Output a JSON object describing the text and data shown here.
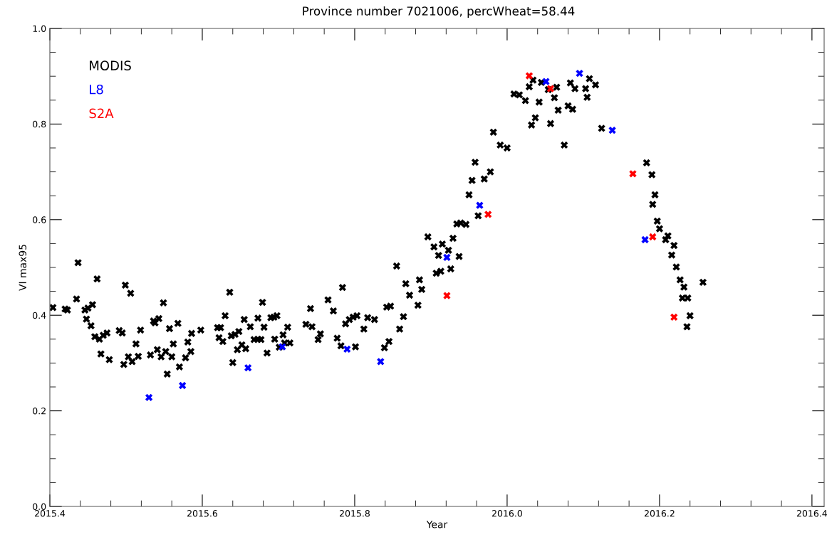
{
  "chart_data": {
    "type": "scatter",
    "title": "Province number 7021006, percWheat=58.44",
    "xlabel": "Year",
    "ylabel": "VI max95",
    "xlim": [
      2015.4,
      2016.416
    ],
    "xticks": [
      2015.4,
      2015.6,
      2015.8,
      {
        "value": 2016.0,
        "label": "2016.0"
      },
      2016.2,
      2016.4
    ],
    "ylim": [
      0.0,
      1.0
    ],
    "yticks": [
      {
        "value": 0.0,
        "label": "0.0"
      },
      0.2,
      0.4,
      0.6,
      0.8,
      {
        "value": 1.0,
        "label": "1.0"
      }
    ],
    "grid": false,
    "legend": "top left",
    "marker": "cross",
    "series": [
      {
        "name": "MODIS",
        "color": "#000000",
        "x": [
          2015.404,
          2015.42,
          2015.423,
          2015.437,
          2015.435,
          2015.446,
          2015.45,
          2015.456,
          2015.448,
          2015.462,
          2015.454,
          2015.459,
          2015.465,
          2015.47,
          2015.475,
          2015.467,
          2015.478,
          2015.491,
          2015.495,
          2015.499,
          2015.506,
          2015.497,
          2015.503,
          2015.508,
          2015.513,
          2015.516,
          2015.519,
          2015.532,
          2015.536,
          2015.538,
          2015.541,
          2015.543,
          2015.546,
          2015.549,
          2015.552,
          2015.554,
          2015.557,
          2015.56,
          2015.562,
          2015.568,
          2015.57,
          2015.578,
          2015.581,
          2015.585,
          2015.586,
          2015.598,
          2015.62,
          2015.624,
          2015.622,
          2015.627,
          2015.63,
          2015.636,
          2015.64,
          2015.638,
          2015.643,
          2015.648,
          2015.646,
          2015.652,
          2015.657,
          2015.655,
          2015.663,
          2015.668,
          2015.673,
          2015.677,
          2015.673,
          2015.679,
          2015.681,
          2015.685,
          2015.69,
          2015.694,
          2015.698,
          2015.695,
          2015.701,
          2015.706,
          2015.708,
          2015.715,
          2015.712,
          2015.736,
          2015.742,
          2015.744,
          2015.755,
          2015.752,
          2015.765,
          2015.772,
          2015.777,
          2015.784,
          2015.782,
          2015.788,
          2015.793,
          2015.798,
          2015.803,
          2015.801,
          2015.812,
          2015.817,
          2015.826,
          2015.839,
          2015.845,
          2015.842,
          2015.847,
          2015.855,
          2015.859,
          2015.864,
          2015.867,
          2015.872,
          2015.883,
          2015.885,
          2015.888,
          2015.896,
          2015.904,
          2015.915,
          2015.91,
          2015.923,
          2015.907,
          2015.913,
          2015.926,
          2015.929,
          2015.934,
          2015.939,
          2015.946,
          2015.937,
          2015.95,
          2015.954,
          2015.97,
          2015.962,
          2015.958,
          2015.978,
          2015.982,
          2015.991,
          2016.0,
          2016.009,
          2016.016,
          2016.024,
          2016.034,
          2016.029,
          2016.037,
          2016.032,
          2016.042,
          2016.045,
          2016.054,
          2016.065,
          2016.062,
          2016.057,
          2016.067,
          2016.075,
          2016.083,
          2016.089,
          2016.08,
          2016.086,
          2016.108,
          2016.116,
          2016.103,
          2016.105,
          2016.124,
          2016.183,
          2016.19,
          2016.194,
          2016.191,
          2016.197,
          2016.2,
          2016.211,
          2016.208,
          2016.219,
          2016.216,
          2016.222,
          2016.227,
          2016.232,
          2016.23,
          2016.237,
          2016.257,
          2016.24,
          2016.236
        ],
        "values": [
          0.416,
          0.413,
          0.411,
          0.51,
          0.434,
          0.411,
          0.415,
          0.422,
          0.392,
          0.476,
          0.378,
          0.355,
          0.35,
          0.358,
          0.363,
          0.319,
          0.307,
          0.368,
          0.363,
          0.463,
          0.446,
          0.297,
          0.313,
          0.303,
          0.34,
          0.314,
          0.369,
          0.317,
          0.388,
          0.384,
          0.328,
          0.393,
          0.313,
          0.426,
          0.324,
          0.277,
          0.372,
          0.313,
          0.34,
          0.383,
          0.292,
          0.311,
          0.344,
          0.324,
          0.362,
          0.369,
          0.374,
          0.374,
          0.353,
          0.345,
          0.399,
          0.448,
          0.301,
          0.357,
          0.36,
          0.366,
          0.328,
          0.338,
          0.33,
          0.391,
          0.376,
          0.349,
          0.35,
          0.349,
          0.394,
          0.427,
          0.375,
          0.321,
          0.395,
          0.396,
          0.399,
          0.35,
          0.333,
          0.359,
          0.342,
          0.342,
          0.375,
          0.381,
          0.414,
          0.376,
          0.361,
          0.349,
          0.432,
          0.409,
          0.352,
          0.458,
          0.336,
          0.382,
          0.391,
          0.396,
          0.399,
          0.334,
          0.371,
          0.395,
          0.391,
          0.332,
          0.345,
          0.417,
          0.419,
          0.503,
          0.371,
          0.397,
          0.466,
          0.442,
          0.421,
          0.474,
          0.454,
          0.564,
          0.543,
          0.549,
          0.525,
          0.536,
          0.488,
          0.492,
          0.497,
          0.561,
          0.591,
          0.593,
          0.59,
          0.523,
          0.652,
          0.682,
          0.685,
          0.608,
          0.72,
          0.7,
          0.783,
          0.756,
          0.75,
          0.863,
          0.861,
          0.849,
          0.892,
          0.878,
          0.813,
          0.798,
          0.846,
          0.887,
          0.872,
          0.877,
          0.855,
          0.801,
          0.829,
          0.756,
          0.886,
          0.874,
          0.838,
          0.831,
          0.895,
          0.882,
          0.874,
          0.856,
          0.791,
          0.719,
          0.694,
          0.652,
          0.632,
          0.597,
          0.581,
          0.566,
          0.558,
          0.546,
          0.526,
          0.501,
          0.474,
          0.459,
          0.436,
          0.436,
          0.469,
          0.399,
          0.376
        ]
      },
      {
        "name": "L8",
        "color": "#0000ff",
        "x": [
          2015.53,
          2015.574,
          2015.66,
          2015.705,
          2015.79,
          2015.834,
          2015.921,
          2015.964,
          2016.051,
          2016.095,
          2016.138,
          2016.181
        ],
        "values": [
          0.228,
          0.253,
          0.29,
          0.334,
          0.329,
          0.303,
          0.521,
          0.63,
          0.889,
          0.906,
          0.787,
          0.558
        ]
      },
      {
        "name": "S2A",
        "color": "#ff0000",
        "x": [
          2015.921,
          2015.975,
          2016.029,
          2016.057,
          2016.165,
          2016.191,
          2016.219
        ],
        "values": [
          0.441,
          0.611,
          0.901,
          0.874,
          0.696,
          0.564,
          0.396
        ]
      }
    ]
  }
}
